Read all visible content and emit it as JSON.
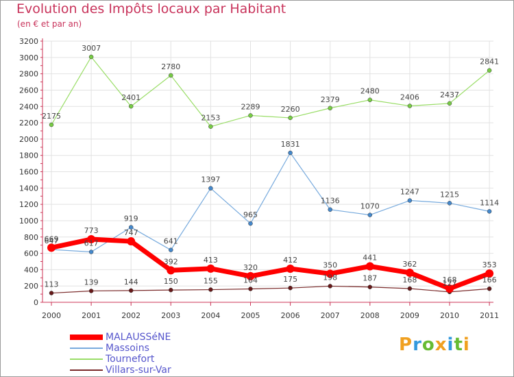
{
  "title": "Evolution des Impôts locaux par Habitant",
  "subtitle": "(en € et par an)",
  "logo": {
    "text": "Proxiti",
    "colors": [
      "#f0a020",
      "#3399dd",
      "#66bb33",
      "#f0a020",
      "#3399dd",
      "#66bb33",
      "#f0a020"
    ]
  },
  "chart_data": {
    "type": "line",
    "categories": [
      "2000",
      "2001",
      "2002",
      "2003",
      "2004",
      "2005",
      "2006",
      "2007",
      "2008",
      "2009",
      "2010",
      "2011"
    ],
    "ylim": [
      0,
      3200
    ],
    "yticks": [
      0,
      200,
      400,
      600,
      800,
      1000,
      1200,
      1400,
      1600,
      1800,
      2000,
      2200,
      2400,
      2600,
      2800,
      3000,
      3200
    ],
    "series": [
      {
        "name": "Tournefort",
        "color": "#99dd66",
        "marker": "#77cc44",
        "values": [
          2175,
          3007,
          2401,
          2780,
          2153,
          2289,
          2260,
          2379,
          2480,
          2406,
          2437,
          2841
        ]
      },
      {
        "name": "Massoins",
        "color": "#77aadd",
        "marker": "#4488cc",
        "values": [
          647,
          617,
          919,
          641,
          1397,
          965,
          1831,
          1136,
          1070,
          1247,
          1215,
          1114
        ]
      },
      {
        "name": "Villars-sur-Var",
        "color": "#7a2a2a",
        "marker": "#661818",
        "values": [
          113,
          139,
          144,
          150,
          155,
          164,
          175,
          198,
          187,
          168,
          127,
          166
        ]
      },
      {
        "name": "MALAUSSéNE",
        "color": "#ff0000",
        "marker": "#ff0000",
        "values": [
          669,
          773,
          747,
          392,
          413,
          320,
          412,
          350,
          441,
          362,
          168,
          353
        ]
      }
    ],
    "legend": [
      "MALAUSSéNE",
      "Massoins",
      "Tournefort",
      "Villars-sur-Var"
    ]
  }
}
